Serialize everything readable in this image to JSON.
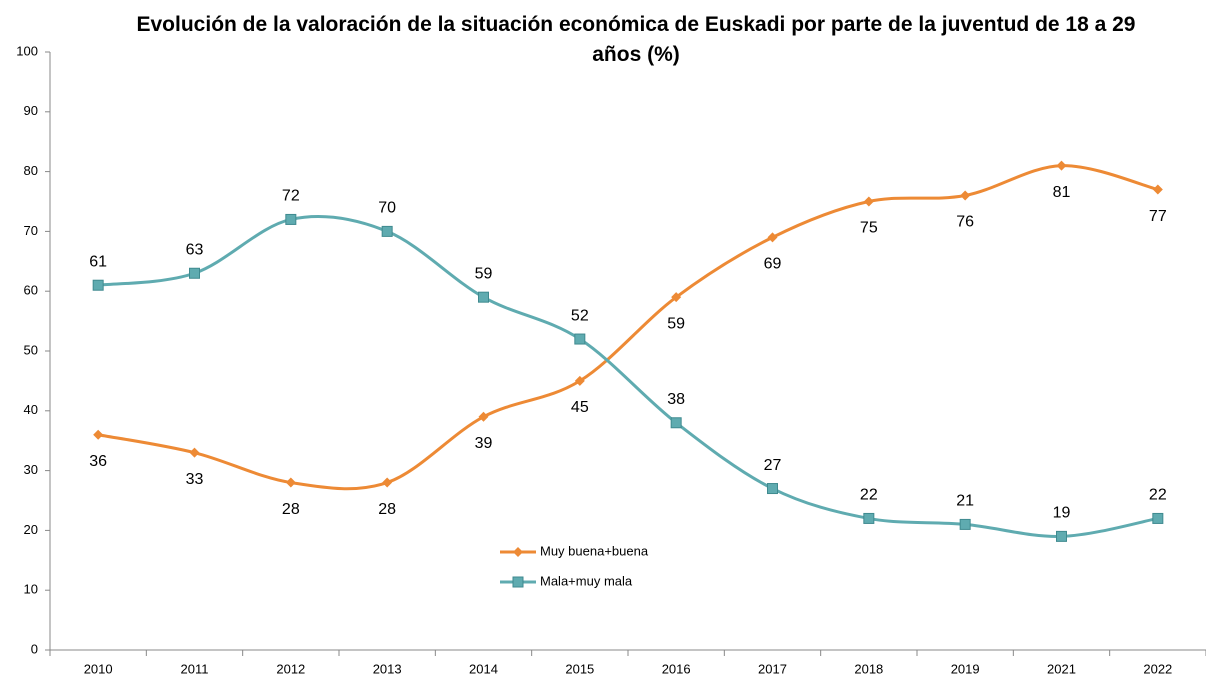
{
  "chart_data": {
    "type": "line",
    "title": "Evolución de la valoración de la situación económica de Euskadi por parte de la juventud de 18 a 29 años (%)",
    "categories": [
      "2010",
      "2011",
      "2012",
      "2013",
      "2014",
      "2015",
      "2016",
      "2017",
      "2018",
      "2019",
      "2021",
      "2022"
    ],
    "series": [
      {
        "name": "Muy buena+buena",
        "color": "#ed8a35",
        "marker": "diamond",
        "label_position": "below",
        "values": [
          36,
          33,
          28,
          28,
          39,
          45,
          59,
          69,
          75,
          76,
          81,
          77
        ]
      },
      {
        "name": "Mala+muy mala",
        "color": "#5fabb0",
        "marker": "square",
        "label_position": "above",
        "values": [
          61,
          63,
          72,
          70,
          59,
          52,
          38,
          27,
          22,
          21,
          19,
          22
        ]
      }
    ],
    "ylim": [
      0,
      100
    ],
    "yticks": [
      0,
      10,
      20,
      30,
      40,
      50,
      60,
      70,
      80,
      90,
      100
    ],
    "grid": false,
    "smooth": true,
    "legend": "center"
  }
}
